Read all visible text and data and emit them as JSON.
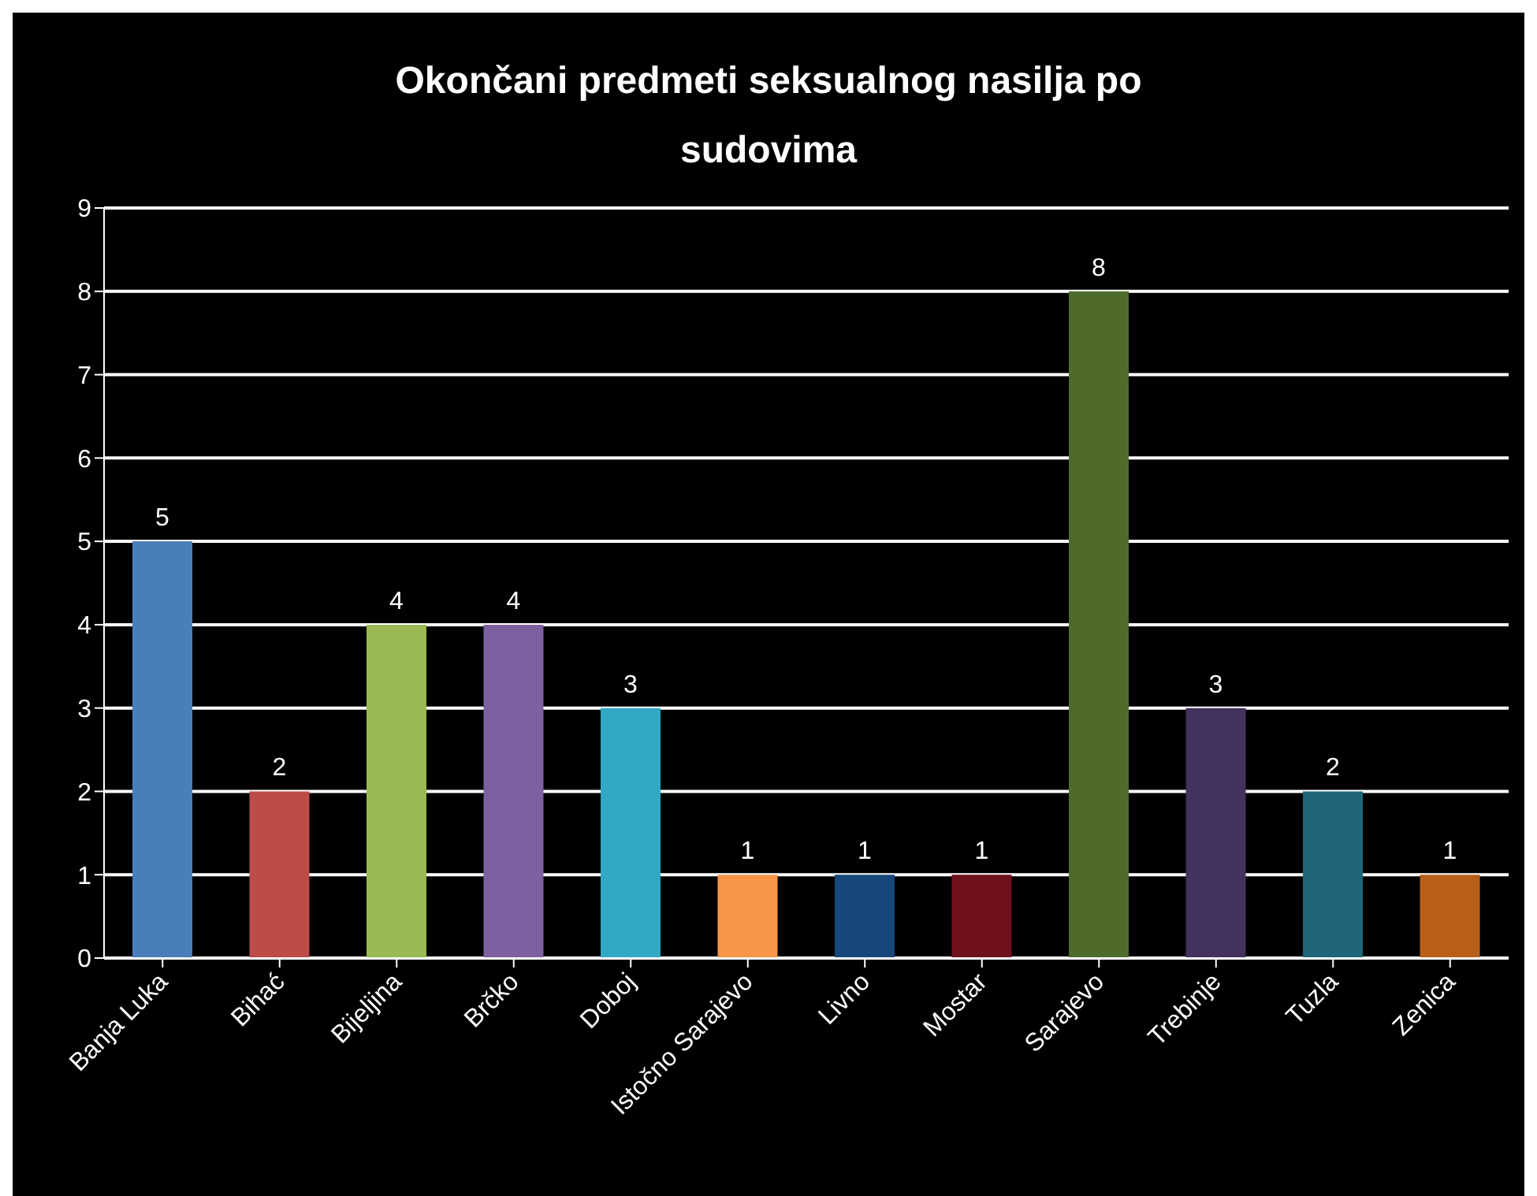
{
  "chart_data": {
    "type": "bar",
    "title": "Okončani predmeti seksualnog nasilja po sudovima",
    "categories": [
      "Banja Luka",
      "Bihać",
      "Bijeljina",
      "Brčko",
      "Doboj",
      "Istočno Sarajevo",
      "Livno",
      "Mostar",
      "Sarajevo",
      "Trebinje",
      "Tuzla",
      "Zenica"
    ],
    "values": [
      5,
      2,
      4,
      4,
      3,
      1,
      1,
      1,
      8,
      3,
      2,
      1
    ],
    "colors": [
      "#4a7ebb",
      "#be4b48",
      "#98b954",
      "#7d60a0",
      "#31a9c4",
      "#f79646",
      "#17477a",
      "#6f111c",
      "#4e6b2b",
      "#43325d",
      "#1e6677",
      "#b8601a"
    ],
    "ylim": [
      0,
      9
    ],
    "yticks": [
      0,
      1,
      2,
      3,
      4,
      5,
      6,
      7,
      8,
      9
    ],
    "grid": "y",
    "data_labels": true
  }
}
